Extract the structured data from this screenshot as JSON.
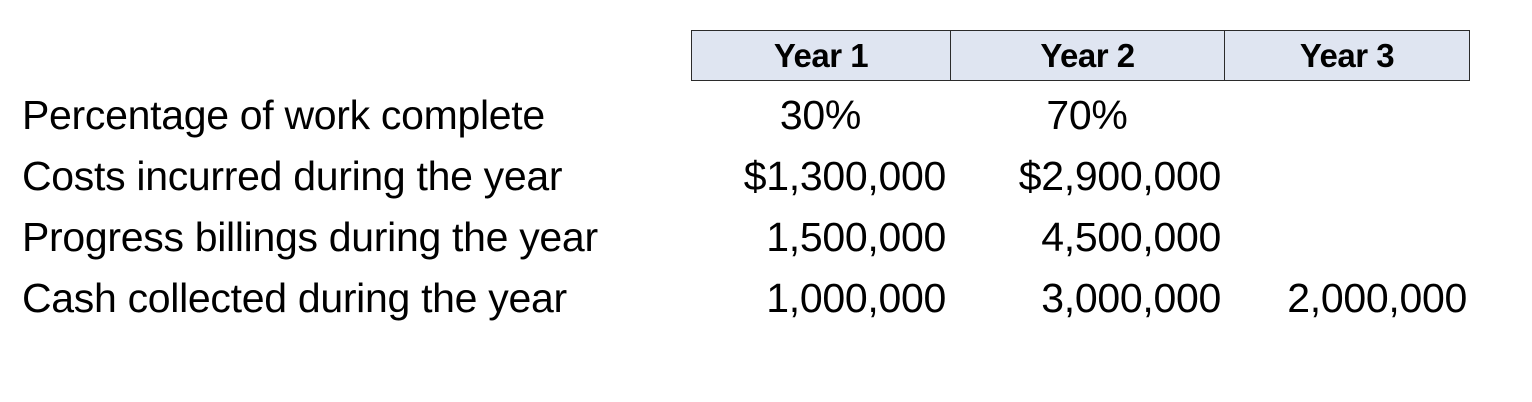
{
  "table": {
    "headers": [
      "Year 1",
      "Year 2",
      "Year 3"
    ],
    "rows": [
      {
        "label": "Percentage of work complete",
        "values": [
          "30%",
          "70%",
          ""
        ]
      },
      {
        "label": "Costs incurred during the year",
        "values": [
          "$1,300,000",
          "$2,900,000",
          ""
        ]
      },
      {
        "label": "Progress billings during the year",
        "values": [
          "1,500,000",
          "4,500,000",
          ""
        ]
      },
      {
        "label": "Cash collected during the year",
        "values": [
          "1,000,000",
          "3,000,000",
          "2,000,000"
        ]
      }
    ]
  },
  "colors": {
    "header_fill": "#dfe5f1",
    "header_border": "#2b2b2b",
    "text": "#000000"
  }
}
